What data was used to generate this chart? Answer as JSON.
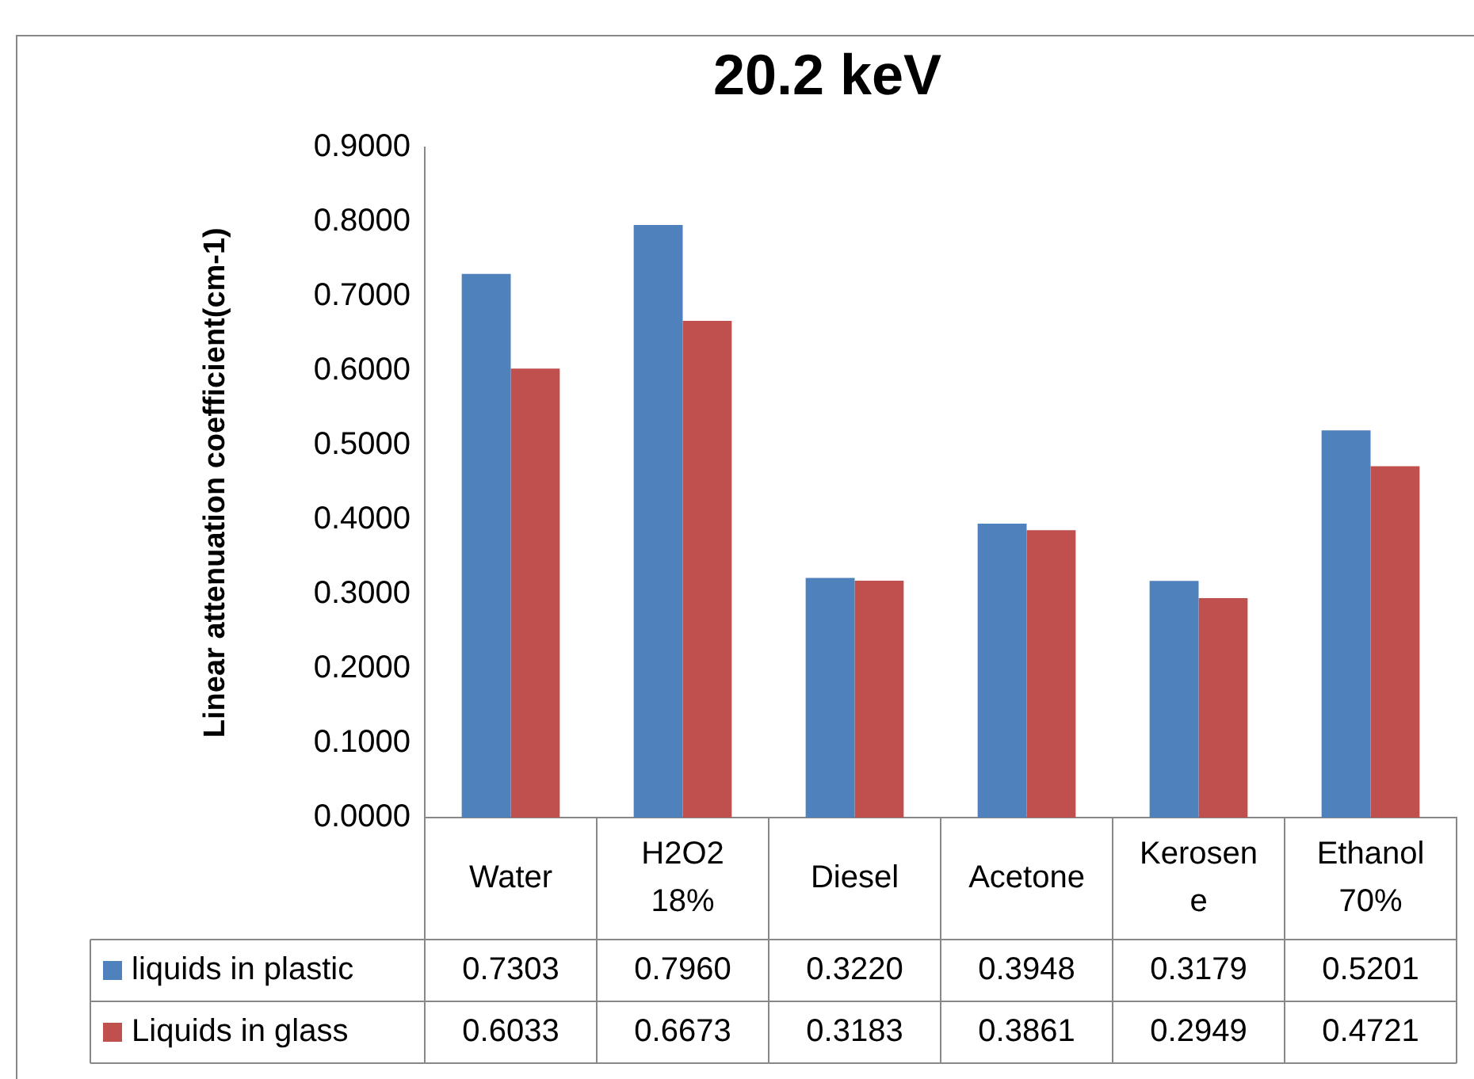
{
  "chart_data": {
    "type": "bar",
    "title": "20.2 keV",
    "ylabel": "Linear attenuation coefficient(cm-1)",
    "categories": [
      "Water",
      "H2O2 18%",
      "Diesel",
      "Acetone",
      "Kerosene",
      "Ethanol70%"
    ],
    "series": [
      {
        "name": "liquids in plastic",
        "color": "#4f81bd",
        "values": [
          0.7303,
          0.796,
          0.322,
          0.3948,
          0.3179,
          0.5201
        ],
        "value_labels": [
          "0.7303",
          "0.7960",
          "0.3220",
          "0.3948",
          "0.3179",
          "0.5201"
        ]
      },
      {
        "name": "Liquids in glass",
        "color": "#c0504d",
        "values": [
          0.6033,
          0.6673,
          0.3183,
          0.3861,
          0.2949,
          0.4721
        ],
        "value_labels": [
          "0.6033",
          "0.6673",
          "0.3183",
          "0.3861",
          "0.2949",
          "0.4721"
        ]
      }
    ],
    "ylim": [
      0,
      0.9
    ],
    "yticks": [
      {
        "value": 0,
        "label": "0.0000"
      },
      {
        "value": 0.1,
        "label": "0.1000"
      },
      {
        "value": 0.2,
        "label": "0.2000"
      },
      {
        "value": 0.3,
        "label": "0.3000"
      },
      {
        "value": 0.4,
        "label": "0.4000"
      },
      {
        "value": 0.5,
        "label": "0.5000"
      },
      {
        "value": 0.6,
        "label": "0.6000"
      },
      {
        "value": 0.7,
        "label": "0.7000"
      },
      {
        "value": 0.8,
        "label": "0.8000"
      },
      {
        "value": 0.9,
        "label": "0.9000"
      }
    ],
    "grid": false,
    "legend": "bottom",
    "data_labels": true
  }
}
